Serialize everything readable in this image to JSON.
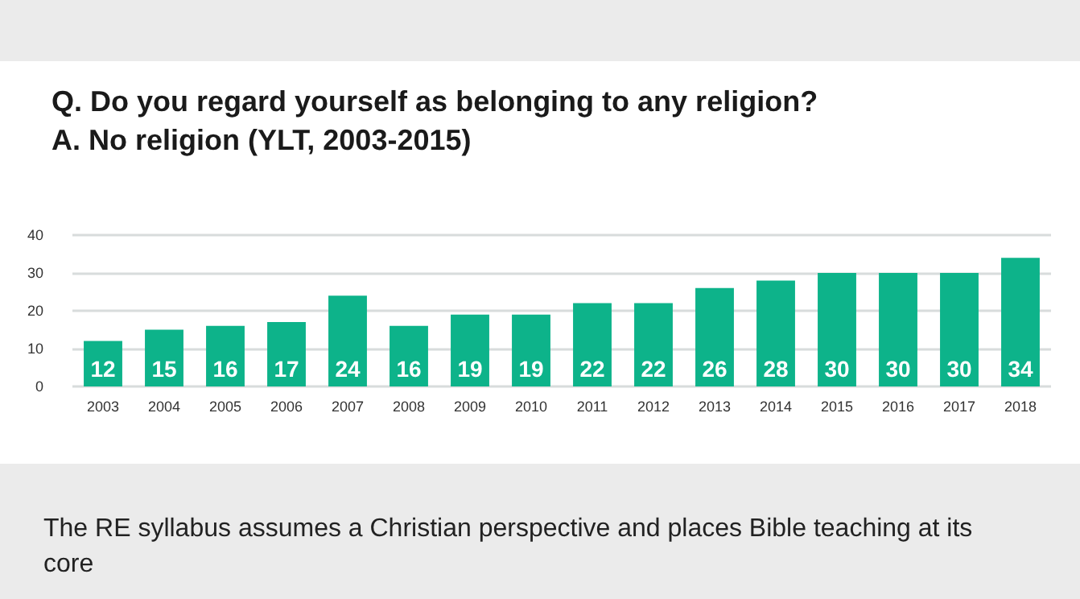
{
  "chart_data": {
    "type": "bar",
    "title": "Q. Do you regard yourself as belonging to any religion?\nA. No religion (YLT, 2003-2015)",
    "categories": [
      "2003",
      "2004",
      "2005",
      "2006",
      "2007",
      "2008",
      "2009",
      "2010",
      "2011",
      "2012",
      "2013",
      "2014",
      "2015",
      "2016",
      "2017",
      "2018"
    ],
    "values": [
      12,
      15,
      16,
      17,
      24,
      16,
      19,
      19,
      22,
      22,
      26,
      28,
      30,
      30,
      30,
      34
    ],
    "color": "#0db38a",
    "ylim": [
      0,
      40
    ],
    "yticks": [
      0,
      10,
      20,
      30,
      40
    ],
    "grid": "y",
    "data_labels": true,
    "annotations": [
      "The RE syllabus assumes a Christian perspective and places Bible teaching at its core"
    ]
  }
}
